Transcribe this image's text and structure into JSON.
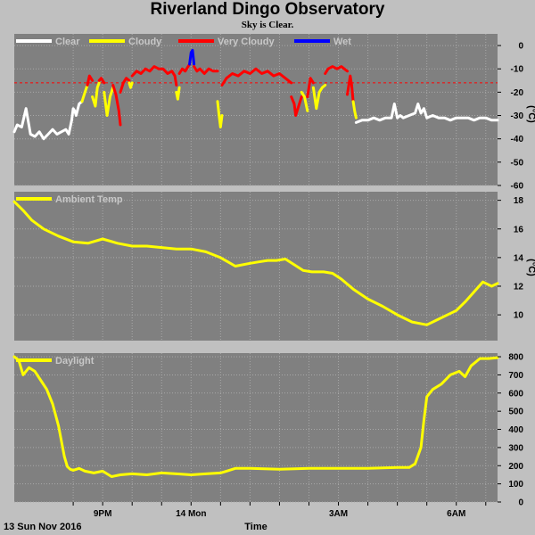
{
  "title": "Riverland Dingo Observatory",
  "subtitle": "Sky is Clear.",
  "colors": {
    "background": "#c0c0c0",
    "plot_bg": "#808080",
    "grid": "#a8a8a8",
    "clear": "#ffffff",
    "cloudy": "#ffff00",
    "very_cloudy": "#ff0000",
    "wet": "#0000ff",
    "temp": "#ffff00",
    "daylight": "#ffff00",
    "threshold": "#ff0000"
  },
  "footer": {
    "date_label": "13 Sun Nov 2016",
    "x_axis_label": "Time"
  },
  "chart_data": [
    {
      "id": "sky",
      "type": "line",
      "ylabel": "(°C)",
      "ylim": [
        -60,
        5
      ],
      "yticks": [
        0,
        -10,
        -20,
        -30,
        -40,
        -50,
        -60
      ],
      "threshold": -16,
      "grid": true,
      "legend": "top-left",
      "legend_entries": [
        {
          "name": "Clear",
          "color": "#ffffff"
        },
        {
          "name": "Cloudy",
          "color": "#ffff00"
        },
        {
          "name": "Very Cloudy",
          "color": "#ff0000"
        },
        {
          "name": "Wet",
          "color": "#0000ff"
        }
      ],
      "segments": [
        {
          "category": "Clear",
          "color": "#ffffff",
          "x": [
            0.0,
            0.1,
            0.25,
            0.4,
            0.55,
            0.7,
            0.85,
            1.0,
            1.15,
            1.3,
            1.45,
            1.6,
            1.75,
            1.85,
            1.95
          ],
          "y": [
            -37,
            -34,
            -35,
            -27,
            -38,
            -39,
            -37,
            -40,
            -38,
            -36,
            -38,
            -37,
            -36,
            -38,
            -32
          ]
        },
        {
          "category": "Clear",
          "color": "#ffffff",
          "x": [
            1.95,
            2.0,
            2.05,
            2.1,
            2.2,
            2.3
          ],
          "y": [
            -32,
            -27,
            -28,
            -30,
            -25,
            -24
          ]
        },
        {
          "category": "Cloudy",
          "color": "#ffff00",
          "x": [
            2.3,
            2.4,
            2.48
          ],
          "y": [
            -24,
            -20,
            -17
          ]
        },
        {
          "category": "Very Cloudy",
          "color": "#ff0000",
          "x": [
            2.48,
            2.55,
            2.65
          ],
          "y": [
            -17,
            -13,
            -15
          ]
        },
        {
          "category": "Cloudy",
          "color": "#ffff00",
          "x": [
            2.65,
            2.75,
            2.82,
            2.88
          ],
          "y": [
            -22,
            -26,
            -18,
            -16
          ]
        },
        {
          "category": "Very Cloudy",
          "color": "#ff0000",
          "x": [
            2.88,
            2.95,
            3.05
          ],
          "y": [
            -15,
            -14,
            -16
          ]
        },
        {
          "category": "Cloudy",
          "color": "#ffff00",
          "x": [
            3.05,
            3.15,
            3.25,
            3.35
          ],
          "y": [
            -20,
            -30,
            -22,
            -18
          ]
        },
        {
          "category": "Very Cloudy",
          "color": "#ff0000",
          "x": [
            3.35,
            3.45,
            3.55,
            3.6
          ],
          "y": [
            -17,
            -21,
            -28,
            -34
          ]
        },
        {
          "category": "Very Cloudy",
          "color": "#ff0000",
          "x": [
            3.6,
            3.7,
            3.8,
            3.9
          ],
          "y": [
            -20,
            -16,
            -14,
            -15
          ]
        },
        {
          "category": "Cloudy",
          "color": "#ffff00",
          "x": [
            3.9,
            3.95,
            4.0
          ],
          "y": [
            -16,
            -18,
            -16
          ]
        },
        {
          "category": "Very Cloudy",
          "color": "#ff0000",
          "x": [
            4.0,
            4.15,
            4.3,
            4.45,
            4.6,
            4.75,
            4.9,
            5.05,
            5.2,
            5.35,
            5.45,
            5.5
          ],
          "y": [
            -13,
            -11,
            -12,
            -10,
            -11,
            -9,
            -10,
            -10,
            -12,
            -11,
            -13,
            -17
          ]
        },
        {
          "category": "Cloudy",
          "color": "#ffff00",
          "x": [
            5.5,
            5.55,
            5.6
          ],
          "y": [
            -20,
            -23,
            -18
          ]
        },
        {
          "category": "Very Cloudy",
          "color": "#ff0000",
          "x": [
            5.6,
            5.7,
            5.8,
            5.9,
            5.95
          ],
          "y": [
            -12,
            -10,
            -11,
            -9,
            -8
          ]
        },
        {
          "category": "Wet",
          "color": "#0000ff",
          "x": [
            5.95,
            6.0,
            6.05,
            6.1
          ],
          "y": [
            -8,
            -3,
            -2,
            -8
          ]
        },
        {
          "category": "Very Cloudy",
          "color": "#ff0000",
          "x": [
            6.1,
            6.2,
            6.3,
            6.45,
            6.6,
            6.75,
            6.9
          ],
          "y": [
            -9,
            -11,
            -10,
            -12,
            -10,
            -11,
            -11
          ]
        },
        {
          "category": "Cloudy",
          "color": "#ffff00",
          "x": [
            6.9,
            6.95,
            7.0,
            7.05
          ],
          "y": [
            -24,
            -30,
            -35,
            -30
          ]
        },
        {
          "category": "Very Cloudy",
          "color": "#ff0000",
          "x": [
            7.05,
            7.2,
            7.4,
            7.6,
            7.8,
            8.0,
            8.2,
            8.4,
            8.6,
            8.8,
            9.0,
            9.2,
            9.4
          ],
          "y": [
            -17,
            -14,
            -12,
            -13,
            -11,
            -12,
            -10,
            -12,
            -11,
            -13,
            -12,
            -14,
            -16
          ]
        },
        {
          "category": "Very Cloudy",
          "color": "#ff0000",
          "x": [
            9.4,
            9.5,
            9.55,
            9.65,
            9.75
          ],
          "y": [
            -22,
            -25,
            -30,
            -26,
            -22
          ]
        },
        {
          "category": "Cloudy",
          "color": "#ffff00",
          "x": [
            9.75,
            9.85,
            9.95
          ],
          "y": [
            -20,
            -22,
            -28
          ]
        },
        {
          "category": "Very Cloudy",
          "color": "#ff0000",
          "x": [
            9.95,
            10.05,
            10.15
          ],
          "y": [
            -22,
            -14,
            -16
          ]
        },
        {
          "category": "Cloudy",
          "color": "#ffff00",
          "x": [
            10.15,
            10.25,
            10.35,
            10.45,
            10.55
          ],
          "y": [
            -18,
            -27,
            -20,
            -18,
            -17
          ]
        },
        {
          "category": "Very Cloudy",
          "color": "#ff0000",
          "x": [
            10.55,
            10.65,
            10.8,
            10.95,
            11.1,
            11.2,
            11.3
          ],
          "y": [
            -12,
            -10,
            -9,
            -10,
            -9,
            -10,
            -11
          ]
        },
        {
          "category": "Very Cloudy",
          "color": "#ff0000",
          "x": [
            11.3,
            11.4,
            11.45,
            11.5
          ],
          "y": [
            -21,
            -13,
            -17,
            -24
          ]
        },
        {
          "category": "Cloudy",
          "color": "#ffff00",
          "x": [
            11.5,
            11.55,
            11.6
          ],
          "y": [
            -24,
            -28,
            -31
          ]
        },
        {
          "category": "Clear",
          "color": "#ffffff",
          "x": [
            11.6,
            11.8,
            12.0,
            12.2,
            12.4,
            12.6,
            12.8,
            12.9,
            13.0,
            13.1,
            13.2,
            13.4,
            13.6,
            13.7,
            13.8,
            13.9,
            14.0,
            14.2,
            14.4,
            14.6,
            14.8,
            15.0,
            15.2,
            15.4,
            15.6,
            15.8,
            16.0,
            16.2,
            16.4
          ],
          "y": [
            -33,
            -32,
            -32,
            -31,
            -32,
            -31,
            -31,
            -25,
            -31,
            -30,
            -31,
            -30,
            -29,
            -25,
            -29,
            -27,
            -31,
            -30,
            -31,
            -31,
            -32,
            -31,
            -31,
            -31,
            -32,
            -31,
            -31,
            -32,
            -32
          ]
        }
      ]
    },
    {
      "id": "temp",
      "type": "line",
      "ylabel": "(°C)",
      "ylim": [
        8.2,
        18.6
      ],
      "yticks": [
        18,
        16,
        14,
        12,
        10
      ],
      "grid": true,
      "legend": "top-left",
      "series": [
        {
          "name": "Ambient Temp",
          "color": "#ffff00",
          "x": [
            0.0,
            0.3,
            0.6,
            1.0,
            1.5,
            2.0,
            2.5,
            3.0,
            3.5,
            4.0,
            4.5,
            5.0,
            5.5,
            6.0,
            6.5,
            7.0,
            7.5,
            8.0,
            8.3,
            8.6,
            8.9,
            9.2,
            9.5,
            9.8,
            10.1,
            10.5,
            10.8,
            11.1,
            11.5,
            12.0,
            12.5,
            13.0,
            13.5,
            14.0,
            14.3,
            14.6,
            15.0,
            15.3,
            15.6,
            15.9,
            16.2,
            16.4
          ],
          "y": [
            17.9,
            17.3,
            16.6,
            16.0,
            15.5,
            15.1,
            15.0,
            15.3,
            15.0,
            14.8,
            14.8,
            14.7,
            14.6,
            14.6,
            14.4,
            14.0,
            13.4,
            13.6,
            13.7,
            13.8,
            13.8,
            13.9,
            13.5,
            13.1,
            13.0,
            13.0,
            12.9,
            12.5,
            11.8,
            11.1,
            10.6,
            10.0,
            9.5,
            9.3,
            9.6,
            9.9,
            10.3,
            10.9,
            11.6,
            12.3,
            12.0,
            12.2
          ]
        }
      ]
    },
    {
      "id": "daylight",
      "type": "line",
      "ylabel": "",
      "ylim": [
        0,
        820
      ],
      "yticks": [
        800,
        700,
        600,
        500,
        400,
        300,
        200,
        100,
        0
      ],
      "grid": true,
      "legend": "top-left",
      "series": [
        {
          "name": "Daylight",
          "color": "#ffff00",
          "x": [
            0.0,
            0.15,
            0.3,
            0.5,
            0.7,
            0.9,
            1.1,
            1.3,
            1.5,
            1.7,
            1.8,
            1.9,
            2.0,
            2.2,
            2.4,
            2.7,
            3.0,
            3.3,
            3.6,
            4.0,
            4.5,
            5.0,
            5.5,
            6.0,
            6.5,
            7.0,
            7.2,
            7.5,
            8.0,
            9.0,
            10.0,
            11.0,
            12.0,
            13.0,
            13.4,
            13.6,
            13.8,
            13.9,
            14.0,
            14.2,
            14.5,
            14.8,
            15.1,
            15.3,
            15.5,
            15.8,
            16.1,
            16.4
          ],
          "y": [
            800,
            780,
            700,
            740,
            720,
            670,
            620,
            540,
            420,
            250,
            195,
            180,
            175,
            185,
            170,
            160,
            170,
            140,
            150,
            155,
            150,
            160,
            155,
            150,
            155,
            160,
            170,
            185,
            185,
            180,
            185,
            185,
            185,
            190,
            190,
            210,
            300,
            450,
            580,
            620,
            650,
            700,
            720,
            690,
            750,
            790,
            790,
            795
          ]
        }
      ]
    }
  ],
  "x_axis": {
    "range": [
      0,
      16.4
    ],
    "ticks": [
      {
        "x": 2.0,
        "label": ""
      },
      {
        "x": 3.0,
        "label": "9PM"
      },
      {
        "x": 4.0,
        "label": ""
      },
      {
        "x": 5.0,
        "label": ""
      },
      {
        "x": 6.0,
        "label": "14 Mon"
      },
      {
        "x": 7.0,
        "label": ""
      },
      {
        "x": 8.0,
        "label": ""
      },
      {
        "x": 9.0,
        "label": ""
      },
      {
        "x": 10.0,
        "label": ""
      },
      {
        "x": 11.0,
        "label": "3AM"
      },
      {
        "x": 12.0,
        "label": ""
      },
      {
        "x": 13.0,
        "label": ""
      },
      {
        "x": 14.0,
        "label": ""
      },
      {
        "x": 15.0,
        "label": "6AM"
      },
      {
        "x": 16.0,
        "label": ""
      }
    ]
  }
}
